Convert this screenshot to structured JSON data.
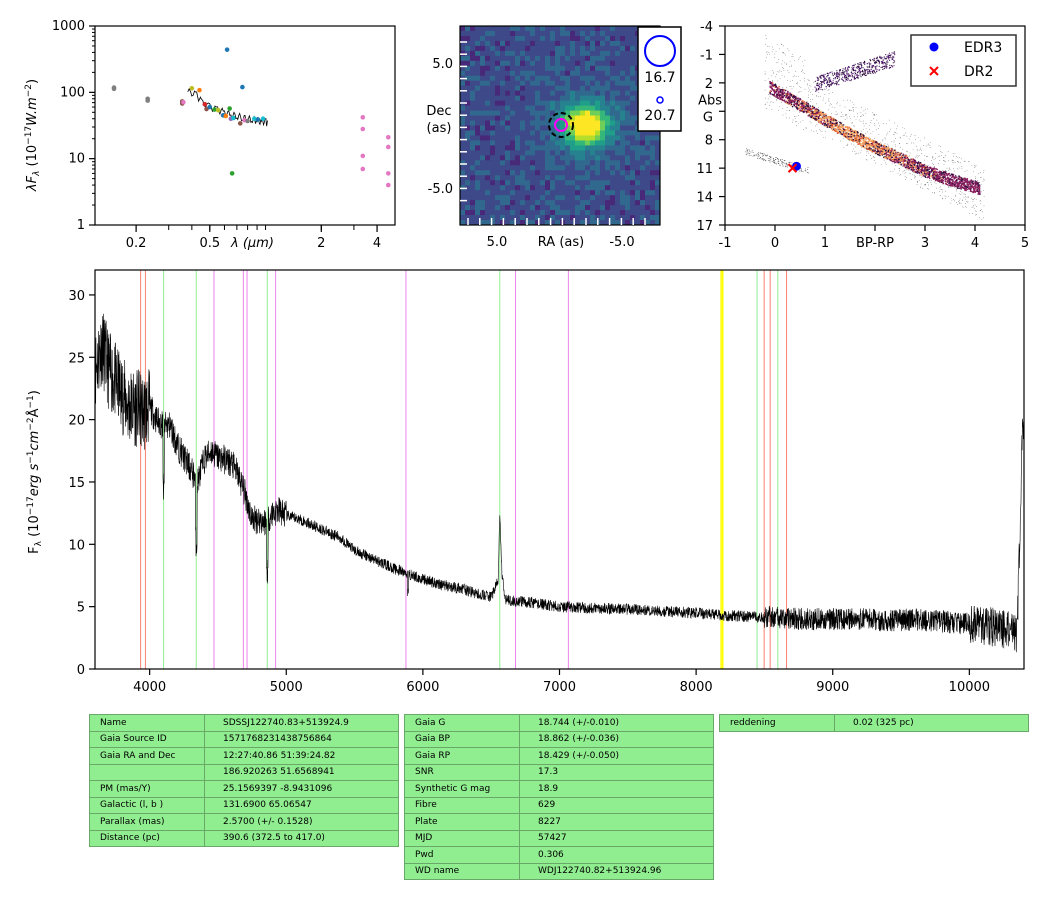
{
  "colors": {
    "spectrum": "#000000",
    "table_bg": "#90ee90",
    "edr3": "#0000ff",
    "dr2": "#ff0000",
    "line_h": "#fa8072",
    "line_he": "#90ee90",
    "line_em": "#ee82ee",
    "line_na": "#ffff00"
  },
  "chart_data": [
    {
      "id": "sed",
      "type": "scatter",
      "xscale": "log",
      "yscale": "log",
      "xlim": [
        0.12,
        5.0
      ],
      "ylim": [
        1,
        1000
      ],
      "xticks": [
        "0.2",
        "0.5",
        "2",
        "4"
      ],
      "yticks": [
        "1",
        "10",
        "100",
        "1000"
      ],
      "xlabel": "λ (μm)",
      "ylabel": "λF_λ (10^-17 W.m^-2)",
      "points": [
        {
          "x": 0.152,
          "y": 118,
          "color": "#7f7f7f"
        },
        {
          "x": 0.152,
          "y": 113,
          "color": "#7f7f7f"
        },
        {
          "x": 0.231,
          "y": 80,
          "color": "#7f7f7f"
        },
        {
          "x": 0.231,
          "y": 75,
          "color": "#7f7f7f"
        },
        {
          "x": 0.355,
          "y": 73,
          "color": "#8c564b"
        },
        {
          "x": 0.355,
          "y": 68,
          "color": "#8c564b"
        },
        {
          "x": 0.36,
          "y": 71,
          "color": "#e377c2"
        },
        {
          "x": 0.4,
          "y": 115,
          "color": "#bcbd22"
        },
        {
          "x": 0.44,
          "y": 108,
          "color": "#ff7f0e"
        },
        {
          "x": 0.47,
          "y": 66,
          "color": "#d62728"
        },
        {
          "x": 0.48,
          "y": 56,
          "color": "#8c564b"
        },
        {
          "x": 0.5,
          "y": 60,
          "color": "#1f77b4"
        },
        {
          "x": 0.53,
          "y": 55,
          "color": "#2ca02c"
        },
        {
          "x": 0.555,
          "y": 54,
          "color": "#bcbd22"
        },
        {
          "x": 0.59,
          "y": 45,
          "color": "#1f77b4"
        },
        {
          "x": 0.61,
          "y": 44,
          "color": "#ff7f0e"
        },
        {
          "x": 0.62,
          "y": 440,
          "color": "#1f77b4"
        },
        {
          "x": 0.64,
          "y": 57,
          "color": "#2ca02c"
        },
        {
          "x": 0.65,
          "y": 40,
          "color": "#9467bd"
        },
        {
          "x": 0.66,
          "y": 6,
          "color": "#2ca02c"
        },
        {
          "x": 0.67,
          "y": 41,
          "color": "#17becf"
        },
        {
          "x": 0.73,
          "y": 34,
          "color": "#8c564b"
        },
        {
          "x": 0.75,
          "y": 120,
          "color": "#1f77b4"
        },
        {
          "x": 0.77,
          "y": 38,
          "color": "#e377c2"
        },
        {
          "x": 0.8,
          "y": 37,
          "color": "#7f7f7f"
        },
        {
          "x": 0.87,
          "y": 40,
          "color": "#17becf"
        },
        {
          "x": 0.91,
          "y": 39,
          "color": "#1f77b4"
        },
        {
          "x": 0.97,
          "y": 40,
          "color": "#17becf"
        },
        {
          "x": 3.35,
          "y": 42,
          "color": "#e377c2"
        },
        {
          "x": 3.35,
          "y": 28,
          "color": "#e377c2"
        },
        {
          "x": 3.35,
          "y": 11,
          "color": "#e377c2"
        },
        {
          "x": 3.35,
          "y": 7,
          "color": "#e377c2"
        },
        {
          "x": 4.6,
          "y": 21,
          "color": "#e377c2"
        },
        {
          "x": 4.6,
          "y": 15,
          "color": "#e377c2"
        },
        {
          "x": 4.6,
          "y": 6,
          "color": "#e377c2"
        },
        {
          "x": 4.6,
          "y": 4,
          "color": "#e377c2"
        }
      ],
      "spectrum_curve": {
        "x": [
          0.38,
          0.42,
          0.45,
          0.5,
          0.55,
          0.6,
          0.65,
          0.7,
          0.75,
          0.8,
          0.85,
          0.9,
          0.95,
          1.0,
          1.03
        ],
        "y": [
          102,
          95,
          72,
          60,
          55,
          50,
          46,
          44,
          42,
          40,
          39,
          38,
          36,
          37,
          33
        ]
      }
    },
    {
      "id": "image",
      "type": "heatmap",
      "xlabel": "RA (as)",
      "ylabel": "Dec\n(as)",
      "xticks": [
        "5.0",
        "-5.0"
      ],
      "yticks": [
        "5.0",
        "-5.0"
      ],
      "colormap": "viridis",
      "legend": [
        "16.7",
        "20.7"
      ]
    },
    {
      "id": "hr",
      "type": "scatter",
      "xlim": [
        -1,
        5
      ],
      "ylim": [
        17,
        -4
      ],
      "xticks": [
        "-1",
        "0",
        "1",
        "BP-RP",
        "3",
        "4",
        "5"
      ],
      "yticks": [
        "-4",
        "-1",
        "2",
        "Abs\nG",
        "8",
        "11",
        "14",
        "17"
      ],
      "series": [
        {
          "name": "EDR3",
          "x": [
            0.43
          ],
          "y": [
            10.8
          ],
          "color": "#0000ff",
          "marker": "o"
        },
        {
          "name": "DR2",
          "x": [
            0.35
          ],
          "y": [
            11.0
          ],
          "color": "#ff0000",
          "marker": "x"
        }
      ],
      "legend_location": "top-right"
    },
    {
      "id": "spectrum",
      "type": "line",
      "xlim": [
        3600,
        10400
      ],
      "ylim": [
        0,
        32
      ],
      "xticks": [
        4000,
        5000,
        6000,
        7000,
        8000,
        9000,
        10000
      ],
      "yticks": [
        0,
        5,
        10,
        15,
        20,
        25,
        30
      ],
      "ylabel": "F_λ (10^-17 erg s^-1 cm^-2 Å^-1)",
      "lines": [
        {
          "x": 3934,
          "color": "#fa8072"
        },
        {
          "x": 3969,
          "color": "#fa8072"
        },
        {
          "x": 4102,
          "color": "#90ee90"
        },
        {
          "x": 4341,
          "color": "#90ee90"
        },
        {
          "x": 4471,
          "color": "#ee82ee"
        },
        {
          "x": 4686,
          "color": "#ee82ee"
        },
        {
          "x": 4713,
          "color": "#ee82ee"
        },
        {
          "x": 4861,
          "color": "#90ee90"
        },
        {
          "x": 4922,
          "color": "#ee82ee"
        },
        {
          "x": 5876,
          "color": "#ee82ee"
        },
        {
          "x": 6563,
          "color": "#90ee90"
        },
        {
          "x": 6678,
          "color": "#ee82ee"
        },
        {
          "x": 7065,
          "color": "#ee82ee"
        },
        {
          "x": 8183,
          "color": "#ffff00"
        },
        {
          "x": 8195,
          "color": "#ffff00"
        },
        {
          "x": 8446,
          "color": "#90ee90"
        },
        {
          "x": 8498,
          "color": "#fa8072"
        },
        {
          "x": 8542,
          "color": "#fa8072"
        },
        {
          "x": 8598,
          "color": "#90ee90"
        },
        {
          "x": 8662,
          "color": "#fa8072"
        }
      ],
      "flux_anchors": {
        "x": [
          3600,
          3650,
          3700,
          3750,
          3800,
          3850,
          3900,
          3950,
          4000,
          4050,
          4100,
          4150,
          4200,
          4250,
          4300,
          4350,
          4400,
          4450,
          4500,
          4550,
          4600,
          4650,
          4700,
          4750,
          4800,
          4850,
          4900,
          4950,
          5000,
          5100,
          5200,
          5300,
          5400,
          5500,
          5600,
          5700,
          5800,
          5900,
          6000,
          6100,
          6200,
          6300,
          6400,
          6500,
          6550,
          6563,
          6580,
          6600,
          6700,
          6800,
          7000,
          7200,
          7500,
          7800,
          8000,
          8200,
          8400,
          8600,
          8800,
          9000,
          9200,
          9400,
          9500,
          9600,
          9800,
          10000,
          10200,
          10300,
          10350,
          10390,
          10400
        ],
        "y": [
          24,
          26,
          24,
          23,
          22,
          21,
          21,
          20.5,
          21,
          20,
          19.5,
          19.5,
          18,
          17,
          16,
          15,
          16.8,
          17.5,
          17,
          16.8,
          16.5,
          15.5,
          14,
          12,
          12,
          11.8,
          12.5,
          12.7,
          12.3,
          12,
          11.5,
          11,
          10.5,
          9.5,
          9,
          8.5,
          8,
          7.6,
          7.2,
          6.9,
          6.6,
          6.4,
          6,
          5.8,
          7,
          12.2,
          7.5,
          5.6,
          5.4,
          5.3,
          5,
          4.9,
          4.8,
          4.6,
          4.5,
          4.3,
          4.2,
          4.1,
          4.0,
          4.0,
          4.0,
          3.9,
          3.9,
          4.0,
          3.8,
          3.6,
          3.3,
          3.0,
          2.8,
          20,
          20
        ]
      }
    }
  ],
  "table1": [
    [
      "Name",
      "SDSSJ122740.83+513924.9"
    ],
    [
      "Gaia Source ID",
      "1571768231438756864"
    ],
    [
      "Gaia RA and Dec",
      "12:27:40.86    51:39:24.82"
    ],
    [
      "",
      "186.920263    51.6568941"
    ],
    [
      "PM (mas/Y)",
      "25.1569397    -8.9431096"
    ],
    [
      "Galactic (l, b )",
      "131.6900    65.06547"
    ],
    [
      "Parallax (mas)",
      "2.5700 (+/- 0.1528)"
    ],
    [
      "Distance (pc)",
      "390.6 (372.5 to 417.0)"
    ]
  ],
  "table2": [
    [
      "Gaia G",
      "18.744 (+/-0.010)"
    ],
    [
      "Gaia BP",
      "18.862 (+/-0.036)"
    ],
    [
      "Gaia RP",
      "18.429 (+/-0.050)"
    ],
    [
      "SNR",
      "17.3"
    ],
    [
      "Synthetic G mag",
      "18.9"
    ],
    [
      "Fibre",
      "629"
    ],
    [
      "Plate",
      "8227"
    ],
    [
      "MJD",
      "57427"
    ],
    [
      "Pwd",
      "0.306"
    ],
    [
      "WD name",
      "WDJ122740.82+513924.96"
    ]
  ],
  "table3": [
    [
      "reddening",
      "0.02 (325 pc)"
    ]
  ]
}
